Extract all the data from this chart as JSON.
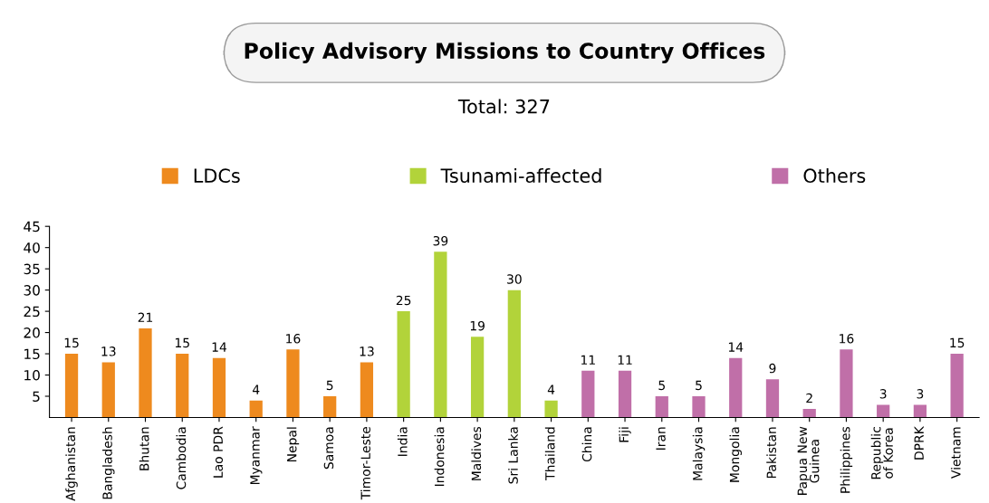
{
  "chart_data": {
    "type": "bar",
    "title": "Policy Advisory Missions to Country Offices",
    "subtitle": "Total: 327",
    "categories": [
      "Afghanistan",
      "Bangladesh",
      "Bhutan",
      "Cambodia",
      "Lao PDR",
      "Myanmar",
      "Nepal",
      "Samoa",
      "Timor-Leste",
      "India",
      "Indonesia",
      "Maldives",
      "Sri Lanka",
      "Thailand",
      "China",
      "Fiji",
      "Iran",
      "Malaysia",
      "Mongolia",
      "Pakistan",
      "Papua New Guinea",
      "Philippines",
      "Republic of Korea",
      "DPRK",
      "Vietnam"
    ],
    "series": [
      {
        "name": "LDCs",
        "color": "#ee8a1e",
        "values": [
          15,
          13,
          21,
          15,
          14,
          4,
          16,
          5,
          13,
          null,
          null,
          null,
          null,
          null,
          null,
          null,
          null,
          null,
          null,
          null,
          null,
          null,
          null,
          null,
          null
        ]
      },
      {
        "name": "Tsunami-affected",
        "color": "#b2d33a",
        "values": [
          null,
          null,
          null,
          null,
          null,
          null,
          null,
          null,
          null,
          25,
          39,
          19,
          30,
          4,
          null,
          null,
          null,
          null,
          null,
          null,
          null,
          null,
          null,
          null,
          null
        ]
      },
      {
        "name": "Others",
        "color": "#c06fa8",
        "values": [
          null,
          null,
          null,
          null,
          null,
          null,
          null,
          null,
          null,
          null,
          null,
          null,
          null,
          null,
          11,
          11,
          5,
          5,
          14,
          9,
          2,
          16,
          3,
          3,
          15
        ]
      }
    ],
    "data_labels": true,
    "ylim": [
      0,
      45
    ],
    "yticks": [
      5,
      10,
      15,
      20,
      25,
      30,
      35,
      40,
      45
    ],
    "grid": false,
    "legend": "top"
  }
}
